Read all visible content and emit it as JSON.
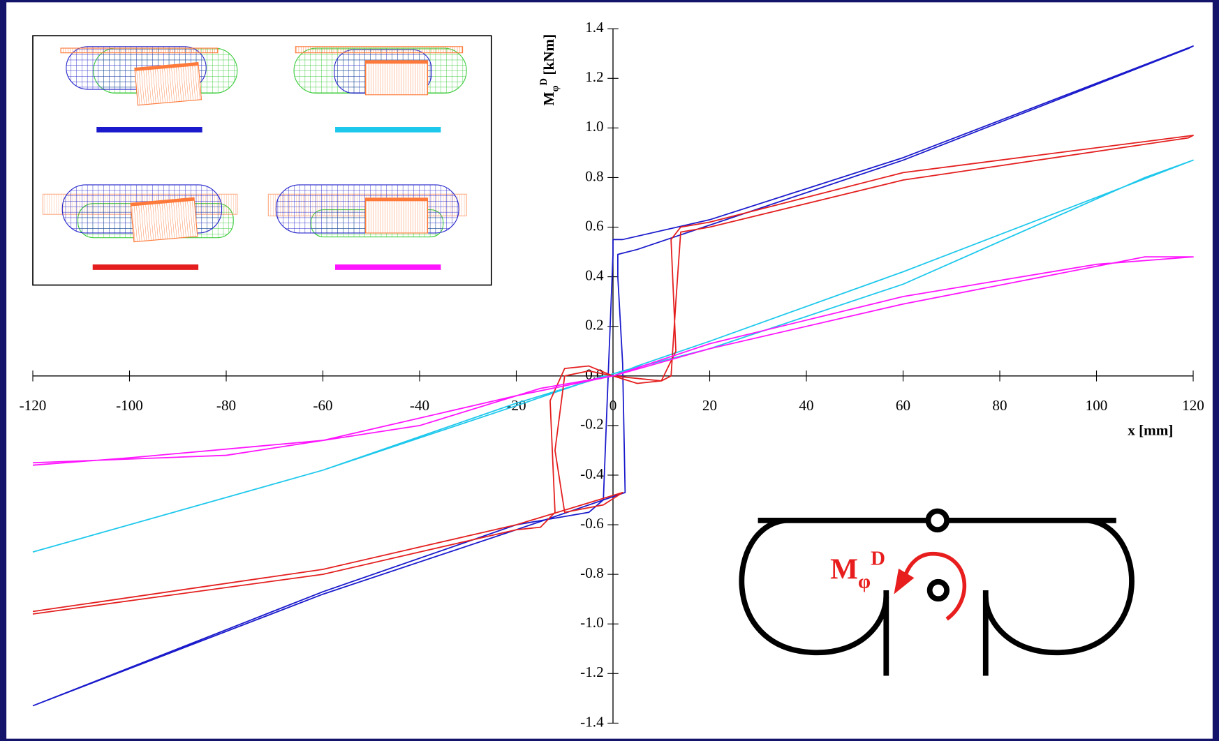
{
  "chart_data": {
    "type": "line",
    "xlabel": "x [mm]",
    "ylabel_main": "M",
    "ylabel_sub": "φ",
    "ylabel_sup": "D",
    "ylabel_unit": "[kNm]",
    "diagram_label_main": "M",
    "diagram_label_sub": "φ",
    "diagram_label_sup": "D",
    "xlim": [
      -120,
      120
    ],
    "ylim": [
      -1.4,
      1.4
    ],
    "xticks": [
      -120,
      -100,
      -80,
      -60,
      -40,
      -20,
      0,
      20,
      40,
      60,
      80,
      100,
      120
    ],
    "yticks": [
      1.4,
      1.2,
      {
        "value": 1.0,
        "label": "1.0"
      },
      0.8,
      0.6,
      0.4,
      0.2,
      {
        "value": 0.0,
        "label": "0.0"
      },
      -0.2,
      -0.4,
      -0.6,
      -0.8,
      {
        "value": -1.0,
        "label": "-1.0"
      },
      -1.2,
      -1.4
    ],
    "series": [
      {
        "color": "#1a1acc",
        "x": [
          -120,
          -60,
          -20,
          -5,
          -2,
          -1,
          0,
          0,
          2,
          20,
          60,
          120,
          119,
          60,
          5,
          1,
          1,
          2,
          2.5,
          -20,
          -60,
          -120
        ],
        "values": [
          -1.33,
          -0.87,
          -0.6,
          -0.55,
          -0.5,
          0.0,
          0.49,
          0.55,
          0.55,
          0.63,
          0.88,
          1.33,
          1.32,
          0.87,
          0.51,
          0.49,
          0.4,
          0.05,
          -0.47,
          -0.62,
          -0.88,
          -1.33
        ]
      },
      {
        "color": "#1ec8ec",
        "x": [
          -120,
          -60,
          -20,
          -2,
          0,
          5,
          20,
          60,
          120,
          110,
          60,
          20,
          2,
          -20,
          -60,
          -120
        ],
        "values": [
          -0.71,
          -0.38,
          -0.12,
          0.0,
          0.0,
          0.04,
          0.14,
          0.42,
          0.87,
          0.8,
          0.37,
          0.11,
          0.02,
          -0.11,
          -0.38,
          -0.71
        ]
      },
      {
        "color": "#e41e1e",
        "x": [
          -120,
          -60,
          -20,
          -15,
          -12,
          -13,
          -10,
          -5,
          0,
          5,
          10,
          13,
          12,
          14,
          20,
          60,
          120,
          119,
          60,
          20,
          14,
          13,
          12,
          10,
          0,
          -5,
          -10,
          -12,
          -10,
          -2,
          2,
          -20,
          -60,
          -120
        ],
        "values": [
          -0.96,
          -0.8,
          -0.62,
          -0.61,
          -0.55,
          -0.1,
          0.03,
          0.04,
          0.0,
          -0.03,
          -0.02,
          0.1,
          0.55,
          0.6,
          0.62,
          0.82,
          0.97,
          0.96,
          0.79,
          0.6,
          0.58,
          0.3,
          0.0,
          -0.02,
          0.0,
          0.02,
          0.0,
          -0.3,
          -0.55,
          -0.52,
          -0.47,
          -0.6,
          -0.78,
          -0.95
        ]
      },
      {
        "color": "#ff14ff",
        "x": [
          -120,
          -80,
          -40,
          -15,
          0,
          20,
          60,
          100,
          120,
          110,
          60,
          20,
          0,
          -20,
          -60,
          -100,
          -120
        ],
        "values": [
          -0.35,
          -0.32,
          -0.2,
          -0.05,
          0.0,
          0.13,
          0.32,
          0.45,
          0.48,
          0.48,
          0.29,
          0.11,
          0.0,
          -0.08,
          -0.26,
          -0.33,
          -0.36
        ]
      }
    ]
  }
}
